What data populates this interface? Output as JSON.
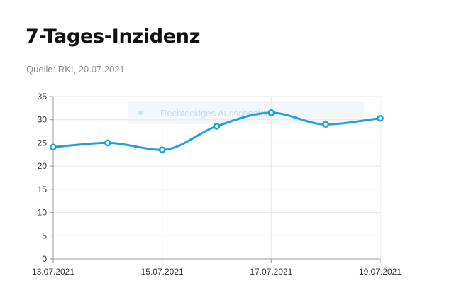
{
  "header": {
    "title": "7-Tages-Inzidenz",
    "source": "Quelle: RKI, 20.07.2021"
  },
  "overlay": {
    "hint": "Rechteckiges Ausschneiden"
  },
  "colors": {
    "series": "#1ea0dd",
    "grid": "#e7e7e7",
    "title": "#111111",
    "source": "#8c8c8c"
  },
  "chart_data": {
    "type": "line",
    "x": [
      "13.07.2021",
      "14.07.2021",
      "15.07.2021",
      "16.07.2021",
      "17.07.2021",
      "18.07.2021",
      "19.07.2021"
    ],
    "y": [
      24.1,
      25.0,
      23.5,
      28.6,
      31.5,
      29.0,
      30.3
    ],
    "x_tick_labels": [
      "13.07.2021",
      "15.07.2021",
      "17.07.2021",
      "19.07.2021"
    ],
    "y_ticks": [
      0,
      5,
      10,
      15,
      20,
      25,
      30,
      35
    ],
    "ylim": [
      0,
      35
    ],
    "title": "",
    "xlabel": "",
    "ylabel": "",
    "grid": true,
    "legend": "none",
    "smooth": true
  }
}
